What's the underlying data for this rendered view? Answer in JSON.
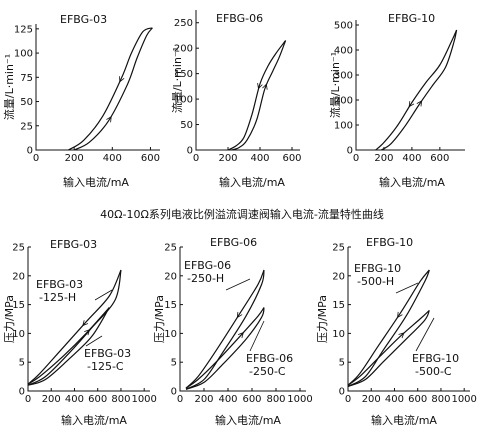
{
  "caption": "40Ω-10Ω系列电液比例溢流调速阀输入电流-流量特性曲线",
  "chart_data": [
    {
      "type": "line",
      "title": "EFBG-03",
      "xlabel": "输入电流/mA",
      "ylabel": "流量/L·min⁻¹",
      "xlim": [
        0,
        650
      ],
      "ylim": [
        0,
        130
      ],
      "xticks": [
        0,
        200,
        400,
        600
      ],
      "yticks": [
        0,
        25,
        50,
        75,
        100,
        125
      ],
      "series": [
        {
          "x": [
            170,
            250,
            350,
            450,
            500,
            560,
            610
          ],
          "y": [
            0,
            10,
            35,
            75,
            100,
            122,
            126
          ]
        },
        {
          "x": [
            200,
            280,
            380,
            480,
            530,
            580,
            610
          ],
          "y": [
            0,
            8,
            30,
            68,
            95,
            118,
            126
          ]
        }
      ],
      "annotations": []
    },
    {
      "type": "line",
      "title": "EFBG-06",
      "xlabel": "输入电流/mA",
      "ylabel": "流量/L·min⁻¹",
      "xlim": [
        0,
        650
      ],
      "ylim": [
        0,
        275
      ],
      "xticks": [
        0,
        200,
        400,
        600
      ],
      "yticks": [
        0,
        50,
        100,
        150,
        200,
        250
      ],
      "series": [
        {
          "x": [
            200,
            250,
            300,
            350,
            400,
            450,
            500,
            560
          ],
          "y": [
            0,
            8,
            25,
            70,
            130,
            165,
            190,
            215
          ]
        },
        {
          "x": [
            220,
            270,
            320,
            380,
            430,
            480,
            520,
            560
          ],
          "y": [
            0,
            5,
            20,
            60,
            120,
            155,
            182,
            215
          ]
        }
      ],
      "annotations": []
    },
    {
      "type": "line",
      "title": "EFBG-10",
      "xlabel": "输入电流/mA",
      "ylabel": "流量/L·min⁻¹",
      "xlim": [
        0,
        780
      ],
      "ylim": [
        0,
        520
      ],
      "xticks": [
        0,
        200,
        400,
        600
      ],
      "yticks": [
        0,
        100,
        200,
        300,
        400,
        500
      ],
      "series": [
        {
          "x": [
            140,
            200,
            300,
            400,
            500,
            600,
            680,
            720
          ],
          "y": [
            0,
            30,
            100,
            190,
            270,
            340,
            430,
            480
          ]
        },
        {
          "x": [
            180,
            250,
            350,
            450,
            550,
            640,
            700,
            720
          ],
          "y": [
            0,
            25,
            95,
            180,
            260,
            330,
            430,
            480
          ]
        }
      ],
      "annotations": []
    },
    {
      "type": "line",
      "title": "EFBG-03",
      "xlabel": "输入电流/mA",
      "ylabel": "压力/MPa",
      "xlim": [
        0,
        1050
      ],
      "ylim": [
        0,
        25
      ],
      "xticks": [
        0,
        200,
        400,
        600,
        800,
        1000
      ],
      "yticks": [
        0,
        5,
        10,
        15,
        20,
        25
      ],
      "series": [
        {
          "x": [
            0,
            100,
            300,
            500,
            700,
            800
          ],
          "y": [
            1.2,
            3,
            7.5,
            12,
            16.5,
            21
          ]
        },
        {
          "x": [
            0,
            150,
            350,
            550,
            750,
            800
          ],
          "y": [
            1,
            2.5,
            6.5,
            11,
            15.8,
            21
          ]
        },
        {
          "x": [
            0,
            100,
            300,
            500,
            700
          ],
          "y": [
            1.2,
            2.5,
            6,
            10,
            14.5
          ]
        },
        {
          "x": [
            0,
            150,
            350,
            550,
            700
          ],
          "y": [
            1,
            2,
            5.5,
            9.5,
            14.5
          ]
        }
      ],
      "annotations": [
        {
          "lines": [
            "EFBG-03",
            "-125-H"
          ]
        },
        {
          "lines": [
            "EFBG-03",
            "-125-C"
          ]
        }
      ]
    },
    {
      "type": "line",
      "title": "EFBG-06",
      "xlabel": "输入电流/mA",
      "ylabel": "压力/MPa",
      "xlim": [
        0,
        1050
      ],
      "ylim": [
        0,
        25
      ],
      "xticks": [
        0,
        200,
        400,
        600,
        800,
        1000
      ],
      "yticks": [
        0,
        5,
        10,
        15,
        20,
        25
      ],
      "series": [
        {
          "x": [
            50,
            150,
            300,
            500,
            650,
            700
          ],
          "y": [
            0.5,
            2.5,
            7,
            13.5,
            18.5,
            21
          ]
        },
        {
          "x": [
            50,
            200,
            350,
            550,
            680,
            700
          ],
          "y": [
            0.3,
            2,
            6.5,
            13,
            18.5,
            21
          ]
        },
        {
          "x": [
            50,
            150,
            300,
            500,
            650,
            700
          ],
          "y": [
            0.5,
            2,
            5,
            9.5,
            13,
            14.5
          ]
        },
        {
          "x": [
            50,
            200,
            350,
            550,
            680,
            700
          ],
          "y": [
            0.3,
            1.5,
            4.5,
            9,
            12.8,
            14.5
          ]
        }
      ],
      "annotations": [
        {
          "lines": [
            "EFBG-06",
            "-250-H"
          ]
        },
        {
          "lines": [
            "EFBG-06",
            "-250-C"
          ]
        }
      ]
    },
    {
      "type": "line",
      "title": "EFBG-10",
      "xlabel": "输入电流/mA",
      "ylabel": "压力/MPa",
      "xlim": [
        0,
        1050
      ],
      "ylim": [
        0,
        25
      ],
      "xticks": [
        0,
        200,
        400,
        600,
        800,
        1000
      ],
      "yticks": [
        0,
        5,
        10,
        15,
        20,
        25
      ],
      "series": [
        {
          "x": [
            0,
            100,
            250,
            450,
            620,
            700
          ],
          "y": [
            1,
            3,
            7.5,
            13.5,
            19,
            21
          ]
        },
        {
          "x": [
            0,
            150,
            300,
            500,
            660,
            700
          ],
          "y": [
            0.8,
            2.5,
            7,
            13,
            19,
            21
          ]
        },
        {
          "x": [
            0,
            100,
            250,
            450,
            620,
            700
          ],
          "y": [
            1,
            2.5,
            5.5,
            9.5,
            12.5,
            14
          ]
        },
        {
          "x": [
            0,
            150,
            300,
            500,
            660,
            700
          ],
          "y": [
            0.8,
            2,
            5,
            9,
            12.3,
            14
          ]
        }
      ],
      "annotations": [
        {
          "lines": [
            "EFBG-10",
            "-500-H"
          ]
        },
        {
          "lines": [
            "EFBG-10",
            "-500-C"
          ]
        }
      ]
    }
  ]
}
